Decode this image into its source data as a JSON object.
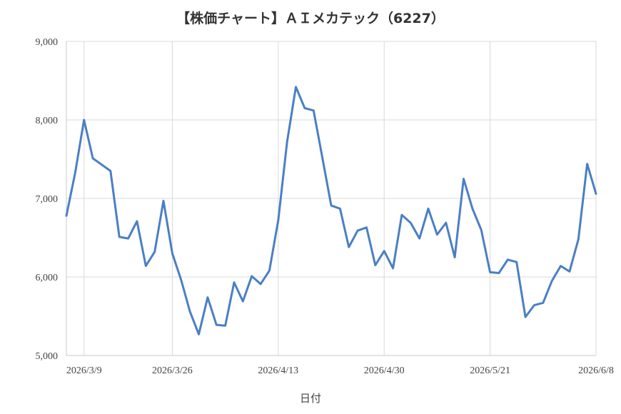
{
  "chart_data": {
    "type": "line",
    "title": "【株価チャート】ＡＩメカテック（6227）",
    "xlabel": "日付",
    "ylabel": "",
    "ylim": [
      5000,
      9000
    ],
    "y_ticks": [
      "5,000",
      "6,000",
      "7,000",
      "8,000",
      "9,000"
    ],
    "y_tick_values": [
      5000,
      6000,
      7000,
      8000,
      9000
    ],
    "x_tick_labels": [
      "2026/3/9",
      "2026/3/26",
      "2026/4/13",
      "2026/4/30",
      "2026/5/21",
      "2026/6/8"
    ],
    "x_tick_indices": [
      2,
      12,
      24,
      36,
      48,
      60
    ],
    "grid": true,
    "colors": {
      "series": "#4a7fc4",
      "grid": "#d9d9d9"
    },
    "series": [
      {
        "values": [
          6780,
          7330,
          8000,
          7510,
          7430,
          7350,
          6510,
          6490,
          6710,
          6140,
          6320,
          6970,
          6300,
          5960,
          5560,
          5270,
          5740,
          5390,
          5380,
          5930,
          5690,
          6010,
          5910,
          6080,
          6720,
          7720,
          8420,
          8150,
          8120,
          7520,
          6910,
          6870,
          6380,
          6590,
          6630,
          6150,
          6330,
          6110,
          6790,
          6690,
          6490,
          6870,
          6540,
          6690,
          6250,
          7250,
          6870,
          6600,
          6060,
          6050,
          6220,
          6190,
          5490,
          5640,
          5670,
          5950,
          6140,
          6070,
          6480,
          7440,
          7060
        ]
      }
    ]
  }
}
